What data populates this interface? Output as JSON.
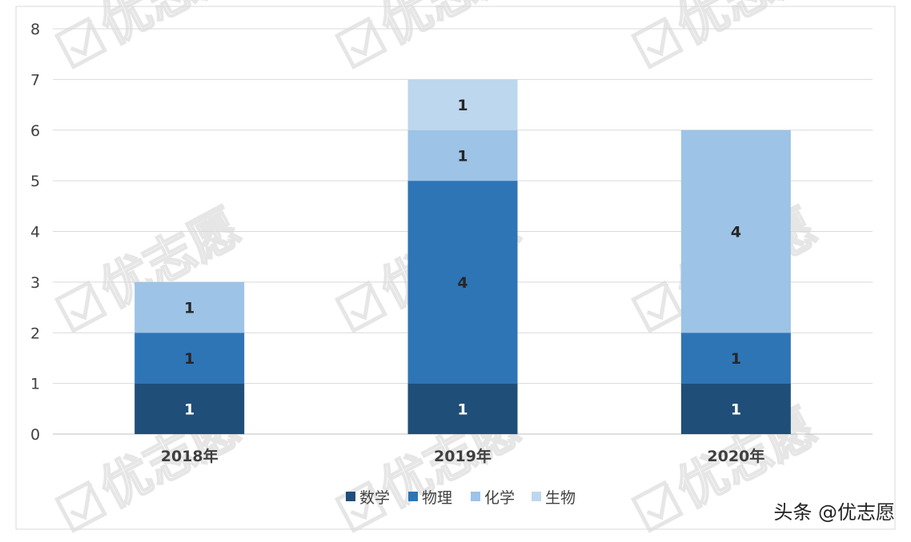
{
  "chart_data": {
    "type": "bar",
    "stacked": true,
    "categories": [
      "2018年",
      "2019年",
      "2020年"
    ],
    "series": [
      {
        "name": "数学",
        "values": [
          1,
          1,
          1
        ],
        "color": "#1f4e79"
      },
      {
        "name": "物理",
        "values": [
          1,
          4,
          1
        ],
        "color": "#2e75b6"
      },
      {
        "name": "化学",
        "values": [
          1,
          1,
          4
        ],
        "color": "#9dc3e6"
      },
      {
        "name": "生物",
        "values": [
          0,
          1,
          0
        ],
        "color": "#bdd7ee"
      }
    ],
    "data_labels": [
      [
        "1",
        "1",
        "1"
      ],
      [
        "1",
        "4",
        "1"
      ],
      [
        "1",
        "1",
        "4"
      ],
      [
        "",
        "1",
        ""
      ]
    ],
    "data_label_colors": [
      "#ffffff",
      "#262626",
      "#262626",
      "#262626"
    ],
    "yticks": [
      0,
      1,
      2,
      3,
      4,
      5,
      6,
      7,
      8
    ],
    "ylim": [
      0,
      8
    ],
    "grid": true,
    "legend_position": "bottom",
    "title": "",
    "xlabel": "",
    "ylabel": ""
  },
  "watermark": {
    "text": "优志愿",
    "icon": "check-box-icon"
  },
  "source": {
    "label": "头条 @优志愿"
  }
}
